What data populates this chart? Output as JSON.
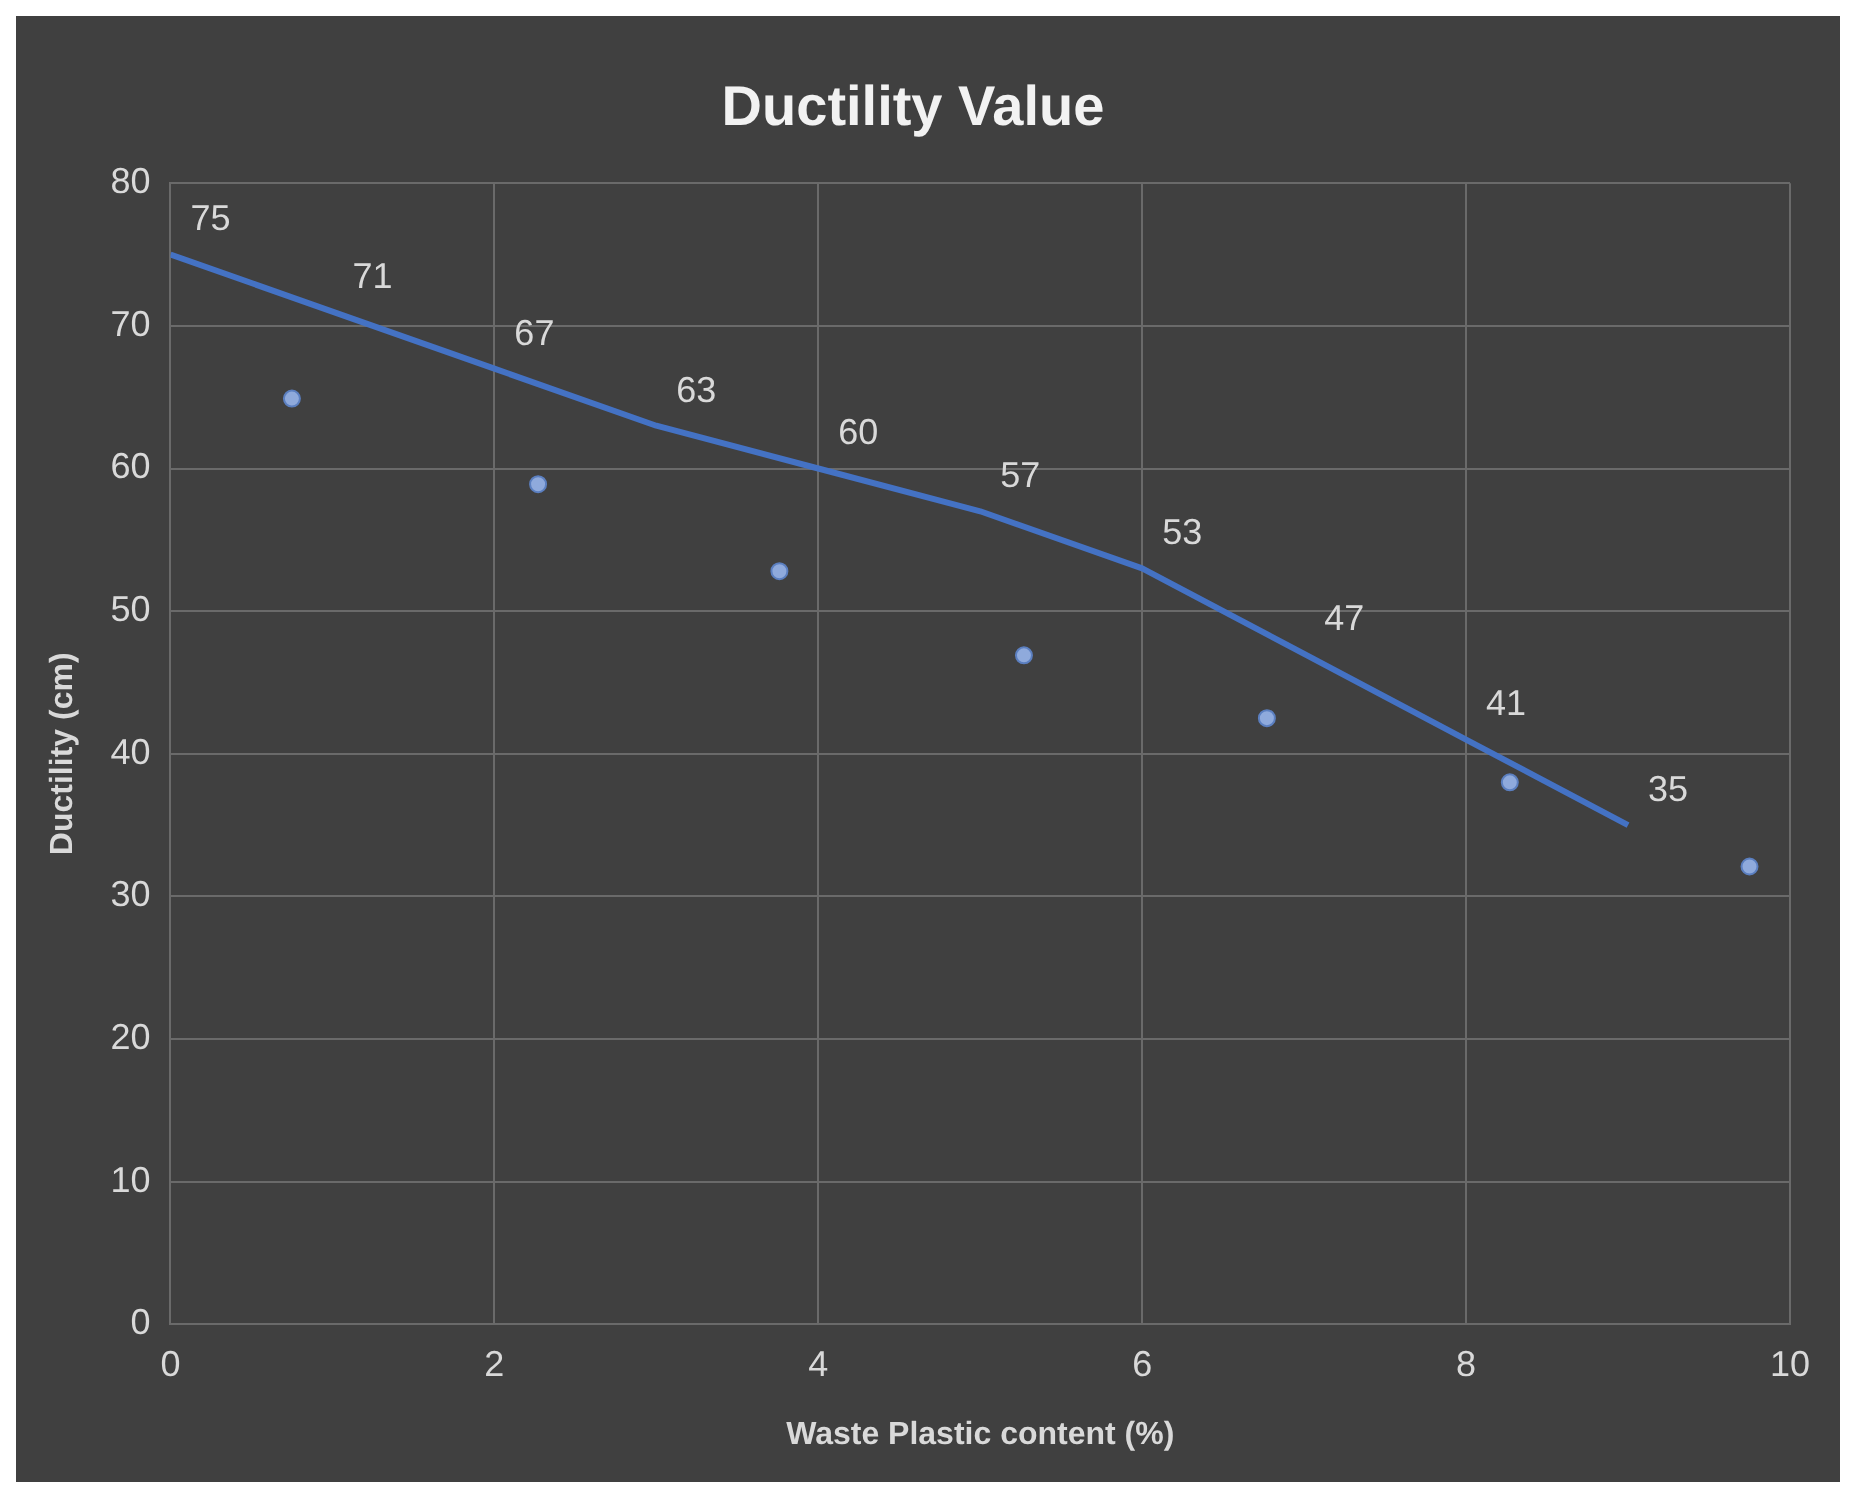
{
  "chart_data": {
    "type": "line",
    "title": "Ductility Value",
    "xlabel": "Waste Plastic content (%)",
    "ylabel": "Ductility (cm)",
    "xlim": [
      0,
      10
    ],
    "xticks": [
      0,
      2,
      4,
      6,
      8,
      10
    ],
    "ylim": [
      0,
      80
    ],
    "yticks": [
      0,
      10,
      20,
      30,
      40,
      50,
      60,
      70,
      80
    ],
    "grid": true,
    "legend": false,
    "series": [
      {
        "color": "#4472c4",
        "marker": "none",
        "x": [
          0,
          1,
          2,
          3,
          4,
          5,
          6,
          7,
          8,
          9
        ],
        "values": [
          75,
          71,
          67,
          63,
          60,
          57,
          53,
          47,
          41,
          35
        ],
        "value_labels": [
          "75",
          "71",
          "67",
          "63",
          "60",
          "57",
          "53",
          "47",
          "41",
          "35"
        ]
      },
      {
        "type": "scatter",
        "color": "#8faadc",
        "marker": "circle",
        "x": [
          0.75,
          2.27,
          3.76,
          5.27,
          6.77,
          8.27,
          9.75
        ],
        "values": [
          64.9,
          58.9,
          52.8,
          46.9,
          42.5,
          38,
          32.1
        ]
      }
    ]
  }
}
